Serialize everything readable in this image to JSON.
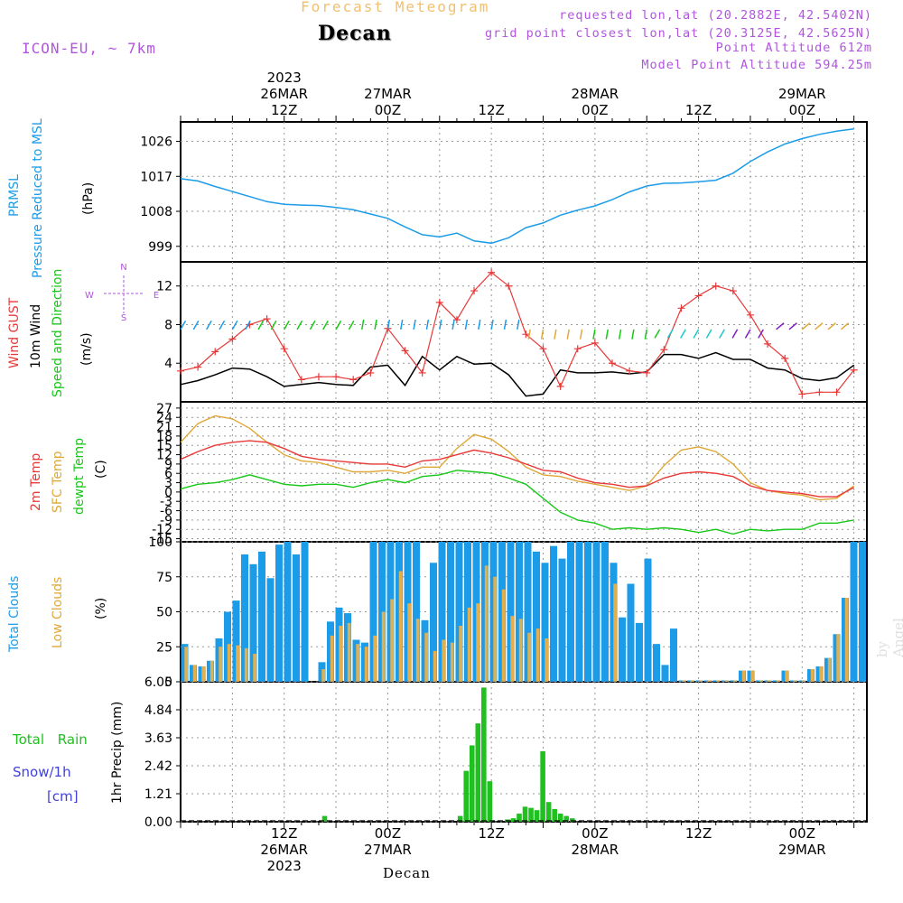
{
  "header": {
    "subtitle": "Forecast Meteogram",
    "title": "Decan",
    "model": "ICON-EU, ~ 7km",
    "requested": "requested lon,lat (20.2882E, 42.5402N)",
    "gridpoint": "grid point closest lon,lat (20.3125E, 42.5625N)",
    "point_alt": "Point Altitude 612m",
    "model_alt": "Model Point Altitude 594.25m",
    "footer": "Decan",
    "signature": "by Angel"
  },
  "time_axis": {
    "top_labels": [
      {
        "h": 12,
        "lines": [
          "2023",
          "26MAR",
          "12Z"
        ]
      },
      {
        "h": 24,
        "lines": [
          "27MAR",
          "00Z"
        ]
      },
      {
        "h": 36,
        "lines": [
          "12Z"
        ]
      },
      {
        "h": 48,
        "lines": [
          "28MAR",
          "00Z"
        ]
      },
      {
        "h": 60,
        "lines": [
          "12Z"
        ]
      },
      {
        "h": 72,
        "lines": [
          "29MAR",
          "00Z"
        ]
      }
    ],
    "bottom_labels": [
      {
        "h": 12,
        "lines": [
          "12Z",
          "26MAR",
          "2023"
        ]
      },
      {
        "h": 24,
        "lines": [
          "00Z",
          "27MAR"
        ]
      },
      {
        "h": 36,
        "lines": [
          "12Z"
        ]
      },
      {
        "h": 48,
        "lines": [
          "00Z",
          "28MAR"
        ]
      },
      {
        "h": 60,
        "lines": [
          "12Z"
        ]
      },
      {
        "h": 72,
        "lines": [
          "00Z",
          "29MAR"
        ]
      }
    ]
  },
  "panel_labels": {
    "pressure": [
      "PRMSL",
      "Pressure Reduced to MSL"
    ],
    "pressure_unit": "(hPa)",
    "wind": [
      "Wind GUST",
      "10m Wind",
      "Speed and Direction"
    ],
    "wind_unit": "(m/s)",
    "compass": {
      "n": "N",
      "s": "S",
      "w": "W",
      "e": "E"
    },
    "temp": [
      "2m Temp",
      "SFC Temp",
      "dewpt Temp"
    ],
    "temp_unit": "(C)",
    "clouds": [
      "Total Clouds",
      "Low Clouds"
    ],
    "clouds_unit": "(%)",
    "precip_left": [
      "Total  Rain",
      "Snow/1h",
      "[cm]"
    ],
    "precip_axis": "1hr Precip (mm)"
  },
  "colors": {
    "pressure": "#1c9ce8",
    "gust": "#e83838",
    "wind": "#000000",
    "temp2m": "#e83838",
    "sfc": "#e0a838",
    "dewpt": "#18c818",
    "total_clouds": "#1c9ce8",
    "low_clouds": "#e0b050",
    "rain": "#20c020",
    "snow": "#4040e0",
    "label_purple": "#b254e0"
  },
  "chart_data": [
    {
      "type": "line",
      "name": "pressure",
      "ylim": [
        995,
        1031
      ],
      "yticks": [
        999,
        1008,
        1017,
        1026
      ],
      "x": [
        0,
        2,
        4,
        6,
        8,
        10,
        12,
        14,
        16,
        18,
        20,
        22,
        24,
        26,
        28,
        30,
        32,
        34,
        36,
        38,
        40,
        42,
        44,
        46,
        48,
        50,
        52,
        54,
        56,
        58,
        60,
        62,
        64,
        66,
        68,
        70,
        72,
        74,
        76,
        78
      ],
      "values": [
        1016.4,
        1015.8,
        1014.4,
        1013.1,
        1011.8,
        1010.5,
        1009.8,
        1009.6,
        1009.5,
        1009.0,
        1008.4,
        1007.3,
        1006.2,
        1004.0,
        1002.0,
        1001.4,
        1002.4,
        1000.4,
        999.8,
        1001.2,
        1003.8,
        1005.0,
        1007.0,
        1008.3,
        1009.4,
        1011.0,
        1013.0,
        1014.5,
        1015.2,
        1015.3,
        1015.6,
        1016.0,
        1017.8,
        1020.8,
        1023.3,
        1025.3,
        1026.7,
        1027.8,
        1028.6,
        1029.2
      ]
    },
    {
      "type": "line",
      "name": "wind",
      "ylim": [
        0,
        14.5
      ],
      "yticks": [
        4,
        8,
        12
      ],
      "x": [
        0,
        2,
        4,
        6,
        8,
        10,
        12,
        14,
        16,
        18,
        20,
        22,
        24,
        26,
        28,
        30,
        32,
        34,
        36,
        38,
        40,
        42,
        44,
        46,
        48,
        50,
        52,
        54,
        56,
        58,
        60,
        62,
        64,
        66,
        68,
        70,
        72,
        74,
        76,
        78
      ],
      "gust": [
        3.2,
        3.6,
        5.2,
        6.5,
        8.0,
        8.6,
        5.5,
        2.3,
        2.6,
        2.6,
        2.3,
        3.0,
        7.6,
        5.3,
        3.0,
        10.3,
        8.5,
        11.5,
        13.4,
        12.0,
        7.0,
        5.5,
        1.6,
        5.5,
        6.1,
        4.0,
        3.2,
        3.0,
        5.4,
        9.7,
        11.0,
        12.0,
        11.5,
        9.0,
        6.0,
        4.5,
        0.8,
        1.0,
        1.0,
        3.3
      ],
      "mean": [
        1.8,
        2.2,
        2.8,
        3.5,
        3.4,
        2.6,
        1.6,
        1.8,
        2.0,
        1.8,
        1.7,
        3.6,
        3.8,
        1.7,
        4.7,
        3.3,
        4.7,
        3.9,
        4.0,
        2.8,
        0.6,
        0.8,
        3.3,
        3.0,
        3.0,
        3.1,
        2.9,
        3.1,
        4.9,
        4.9,
        4.5,
        5.1,
        4.4,
        4.4,
        3.5,
        3.3,
        2.4,
        2.2,
        2.5,
        3.8
      ]
    },
    {
      "type": "line",
      "name": "temperature",
      "ylim": [
        -16,
        29
      ],
      "yticks": [
        -15,
        -12,
        -9,
        -6,
        -3,
        0,
        3,
        6,
        9,
        12,
        15,
        18,
        21,
        24,
        27
      ],
      "x": [
        0,
        2,
        4,
        6,
        8,
        10,
        12,
        14,
        16,
        18,
        20,
        22,
        24,
        26,
        28,
        30,
        32,
        34,
        36,
        38,
        40,
        42,
        44,
        46,
        48,
        50,
        52,
        54,
        56,
        58,
        60,
        62,
        64,
        66,
        68,
        70,
        72,
        74,
        76,
        78
      ],
      "t2m": [
        10.5,
        13.0,
        15.0,
        16.0,
        16.5,
        16.0,
        14.0,
        11.5,
        10.5,
        10.0,
        9.5,
        9.0,
        9.0,
        8.0,
        10.0,
        10.5,
        12.0,
        13.5,
        12.5,
        11.0,
        9.0,
        7.0,
        6.5,
        4.5,
        3.0,
        2.5,
        1.5,
        2.0,
        4.5,
        6.0,
        6.5,
        6.0,
        5.0,
        2.0,
        0.5,
        0.0,
        -0.5,
        -1.5,
        -1.5,
        1.5
      ],
      "sfc": [
        16.0,
        22.0,
        24.5,
        23.5,
        20.5,
        16.0,
        12.0,
        10.0,
        9.5,
        8.0,
        6.5,
        6.5,
        7.0,
        6.0,
        8.0,
        8.0,
        14.0,
        18.5,
        17.0,
        13.0,
        8.0,
        5.5,
        5.0,
        3.5,
        2.5,
        1.5,
        0.5,
        2.0,
        8.5,
        13.5,
        14.5,
        13.0,
        9.0,
        3.0,
        0.5,
        -0.5,
        -1.0,
        -2.5,
        -2.0,
        2.0
      ],
      "dewpt": [
        1.0,
        2.5,
        3.0,
        4.0,
        5.5,
        4.0,
        2.5,
        2.0,
        2.5,
        2.5,
        1.5,
        3.0,
        4.0,
        3.0,
        5.0,
        5.5,
        7.0,
        6.5,
        6.0,
        4.5,
        2.5,
        -2.0,
        -6.5,
        -9.0,
        -10.0,
        -12.0,
        -11.5,
        -12.0,
        -11.5,
        -12.0,
        -13.0,
        -12.0,
        -13.5,
        -12.0,
        -12.5,
        -12.0,
        -12.0,
        -10.0,
        -10.0,
        -9.0
      ]
    },
    {
      "type": "bar",
      "name": "clouds",
      "ylim": [
        0,
        100
      ],
      "yticks": [
        0,
        25,
        50,
        75,
        100
      ],
      "total": [
        27,
        12,
        11,
        15,
        31,
        50,
        58,
        91,
        84,
        93,
        74,
        98,
        100,
        91,
        100,
        0,
        14,
        43,
        53,
        49,
        30,
        28,
        100,
        100,
        100,
        100,
        100,
        100,
        44,
        85,
        100,
        100,
        100,
        100,
        100,
        100,
        100,
        100,
        100,
        100,
        100,
        93,
        85,
        97,
        88,
        100,
        100,
        100,
        100,
        100,
        85,
        46,
        70,
        42,
        88,
        27,
        12,
        38,
        1,
        1,
        1,
        1,
        1,
        1,
        1,
        8,
        8,
        1,
        1,
        1,
        8,
        1,
        1,
        9,
        11,
        17,
        34,
        60,
        100,
        100
      ],
      "low": [
        25,
        12,
        11,
        15,
        25,
        27,
        26,
        24,
        20,
        0,
        0,
        0,
        0,
        0,
        0,
        0,
        9,
        33,
        40,
        42,
        27,
        25,
        33,
        50,
        59,
        79,
        56,
        45,
        35,
        22,
        30,
        28,
        40,
        53,
        56,
        83,
        75,
        66,
        47,
        45,
        35,
        38,
        31,
        0,
        0,
        0,
        0,
        0,
        0,
        0,
        70,
        0,
        0,
        0,
        0,
        0,
        0,
        0,
        1,
        1,
        1,
        1,
        1,
        1,
        1,
        8,
        8,
        1,
        1,
        1,
        8,
        1,
        1,
        9,
        11,
        17,
        34,
        60,
        0,
        0
      ]
    },
    {
      "type": "bar",
      "name": "precip",
      "ylim": [
        0,
        6.05
      ],
      "yticks": [
        0,
        1.21,
        2.42,
        3.63,
        4.84,
        6.05
      ],
      "values": [
        0,
        0,
        0,
        0,
        0,
        0,
        0,
        0,
        0,
        0,
        0,
        0,
        0,
        0,
        0,
        0,
        0,
        0,
        0,
        0,
        0,
        0,
        0,
        0,
        0.25,
        0,
        0,
        0,
        0,
        0,
        0,
        0,
        0,
        0,
        0,
        0,
        0,
        0,
        0,
        0,
        0,
        0,
        0,
        0,
        0,
        0,
        0,
        0.25,
        2.2,
        3.3,
        4.25,
        5.8,
        1.75,
        0,
        0,
        0.1,
        0.15,
        0.35,
        0.65,
        0.6,
        0.5,
        3.05,
        0.85,
        0.55,
        0.35,
        0.25,
        0.15,
        0,
        0,
        0,
        0,
        0,
        0,
        0,
        0,
        0,
        0,
        0,
        0,
        0,
        0,
        0,
        0,
        0,
        0,
        0,
        0,
        0,
        0,
        0,
        0,
        0,
        0,
        0,
        0,
        0,
        0,
        0,
        0,
        0,
        0,
        0,
        0,
        0,
        0,
        0,
        0,
        0,
        0,
        0,
        0
      ]
    }
  ]
}
